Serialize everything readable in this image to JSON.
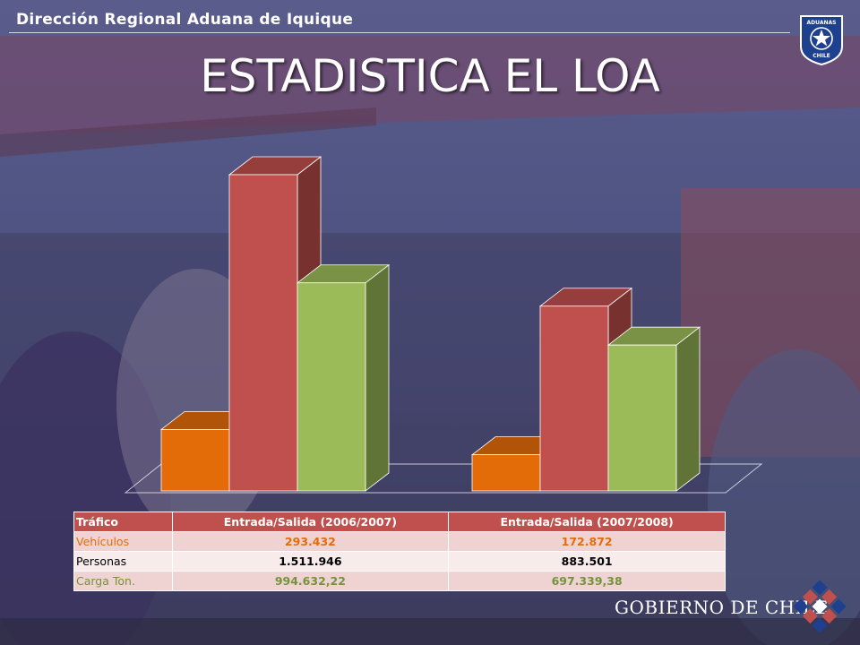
{
  "header": {
    "org": "Dirección Regional Aduana de Iquique"
  },
  "title": "ESTADISTICA EL LOA",
  "badge": {
    "text_top": "ADUANAS",
    "text_bottom": "CHILE",
    "icon": "star-shield-icon"
  },
  "footer": {
    "brand": "GOBIERNO DE CHILE",
    "icon": "gobierno-de-chile-logo"
  },
  "colors": {
    "vehiculos": "#e36c09",
    "personas": "#c0504d",
    "carga": "#9bbb59",
    "table_header": "#c0504d"
  },
  "chart_data": {
    "type": "bar",
    "categories": [
      "Entrada/Salida (2006/2007)",
      "Entrada/Salida (2007/2008)"
    ],
    "series": [
      {
        "name": "Vehículos",
        "values": [
          293432,
          172872
        ]
      },
      {
        "name": "Personas",
        "values": [
          1511946,
          883501
        ]
      },
      {
        "name": "Carga Ton.",
        "values": [
          994632.22,
          697339.38
        ]
      }
    ],
    "ylim": [
      0,
      1600000
    ],
    "grid": false,
    "style": "3d-column"
  },
  "table": {
    "headers": [
      "Tráfico",
      "Entrada/Salida (2006/2007)",
      "Entrada/Salida (2007/2008)"
    ],
    "rows": [
      [
        "Vehículos",
        "293.432",
        "172.872"
      ],
      [
        "Personas",
        "1.511.946",
        "883.501"
      ],
      [
        "Carga Ton.",
        "994.632,22",
        "697.339,38"
      ]
    ]
  }
}
